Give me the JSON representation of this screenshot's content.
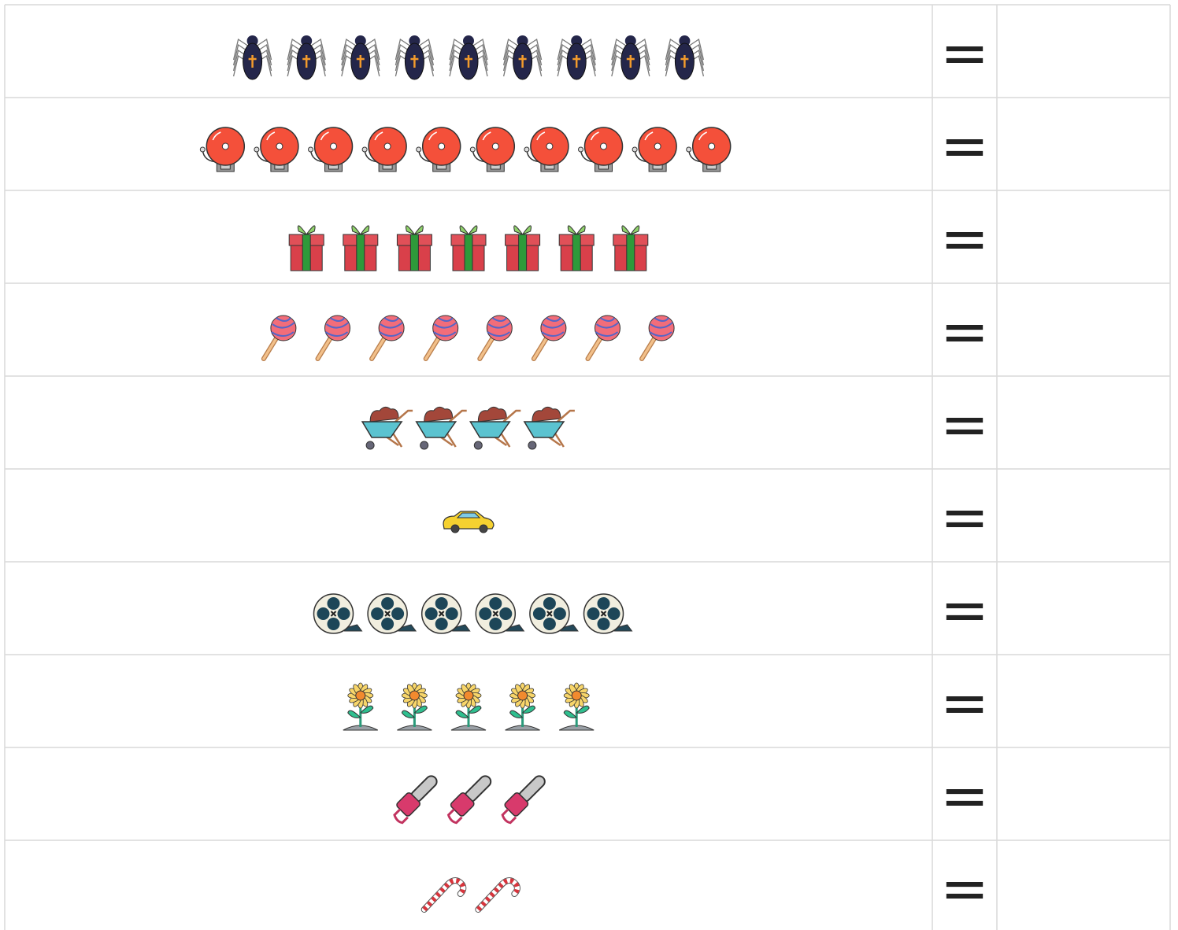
{
  "rows": [
    {
      "count": 9,
      "sign": "="
    },
    {
      "count": 10,
      "sign": "="
    },
    {
      "count": 7,
      "sign": "="
    },
    {
      "count": 8,
      "sign": "="
    },
    {
      "count": 4,
      "sign": "="
    },
    {
      "count": 1,
      "sign": "="
    },
    {
      "count": 6,
      "sign": "="
    },
    {
      "count": 5,
      "sign": "="
    },
    {
      "count": 3,
      "sign": "="
    },
    {
      "count": 2,
      "sign": "="
    }
  ]
}
